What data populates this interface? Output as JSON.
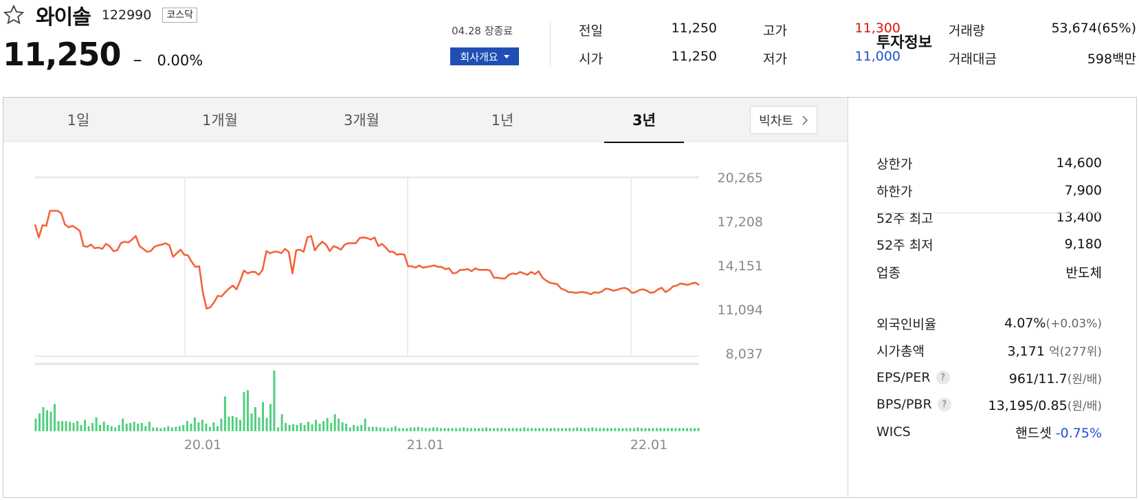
{
  "stock": {
    "name": "와이솔",
    "code": "122990",
    "market": "코스닥",
    "price": "11,250",
    "change_mark": "–",
    "change_pct": "0.00%",
    "date_status": "04.28 장종료",
    "company_button": "회사개요"
  },
  "quote": {
    "prev_close_label": "전일",
    "prev_close": "11,250",
    "open_label": "시가",
    "open": "11,250",
    "high_label": "고가",
    "high": "11,300",
    "low_label": "저가",
    "low": "11,000",
    "volume_label": "거래량",
    "volume": "53,674(65%)",
    "amount_label": "거래대금",
    "amount": "598백만"
  },
  "tabs": [
    "1일",
    "1개월",
    "3개월",
    "1년",
    "3년"
  ],
  "active_tab": "3년",
  "bigchart_label": "빅차트",
  "colors": {
    "price_line": "#f4623a",
    "volume_bar": "#4fd07e",
    "up": "#e3100f",
    "down": "#1f4fd0",
    "accent_btn": "#1f4fb5"
  },
  "chart_data": {
    "type": "line",
    "y_ticks": [
      "20,265",
      "17,208",
      "14,151",
      "11,094",
      "8,037"
    ],
    "ylim": [
      8037,
      20265
    ],
    "x_ticks": [
      "20.01",
      "21.01",
      "22.01"
    ],
    "grid": true,
    "series": [
      {
        "values": [
          17000,
          16100,
          16950,
          16900,
          17950,
          17950,
          17950,
          17800,
          17000,
          16800,
          16900,
          16750,
          16550,
          15500,
          15450,
          15600,
          15350,
          15400,
          15300,
          15650,
          15500,
          15150,
          15200,
          15700,
          15800,
          15750,
          15950,
          16200,
          15500,
          15300,
          15100,
          15150,
          15450,
          15550,
          15600,
          15700,
          15550,
          14750,
          15000,
          15250,
          14900,
          14850,
          14400,
          14050,
          14100,
          12250,
          11150,
          11250,
          11600,
          12050,
          12000,
          12300,
          12550,
          12750,
          12500,
          13100,
          13800,
          13600,
          13700,
          13700,
          13500,
          13850,
          15150,
          15000,
          15100,
          15100,
          15000,
          15300,
          15100,
          13600,
          15200,
          15250,
          15100,
          16100,
          16200,
          15200,
          15550,
          15800,
          15600,
          15150,
          15500,
          15400,
          15250,
          15600,
          15700,
          15700,
          15700,
          16050,
          16100,
          16050,
          15950,
          16100,
          15500,
          15650,
          15400,
          15100,
          15100,
          14900,
          14950,
          14900,
          14100,
          14100,
          14000,
          14150,
          14000,
          14050,
          14100,
          14150,
          14050,
          14050,
          13900,
          13950,
          13600,
          13650,
          13850,
          13850,
          13900,
          13750,
          13950,
          13850,
          13850,
          13850,
          13800,
          13300,
          13300,
          13250,
          13250,
          13500,
          13600,
          13550,
          13700,
          13600,
          13500,
          13700,
          13550,
          13750,
          13300,
          13100,
          12950,
          12900,
          12850,
          12550,
          12450,
          12300,
          12300,
          12250,
          12300,
          12300,
          12250,
          12150,
          12300,
          12250,
          12350,
          12550,
          12500,
          12400,
          12450,
          12550,
          12600,
          12500,
          12250,
          12300,
          12450,
          12500,
          12400,
          12250,
          12300,
          12500,
          12600,
          12300,
          12450,
          12700,
          12750,
          12900,
          12850,
          12800,
          12900,
          12950,
          12800
        ]
      }
    ],
    "volume": {
      "type": "bar",
      "values": [
        0.2,
        0.28,
        0.38,
        0.33,
        0.31,
        0.43,
        0.16,
        0.16,
        0.16,
        0.15,
        0.13,
        0.16,
        0.1,
        0.18,
        0.08,
        0.13,
        0.22,
        0.1,
        0.15,
        0.1,
        0.08,
        0.06,
        0.1,
        0.2,
        0.12,
        0.13,
        0.15,
        0.12,
        0.13,
        0.08,
        0.15,
        0.06,
        0.06,
        0.05,
        0.06,
        0.08,
        0.06,
        0.07,
        0.08,
        0.1,
        0.16,
        0.12,
        0.22,
        0.14,
        0.18,
        0.12,
        0.07,
        0.14,
        0.08,
        0.2,
        0.55,
        0.23,
        0.24,
        0.22,
        0.18,
        0.62,
        0.65,
        0.28,
        0.38,
        0.22,
        0.46,
        0.21,
        0.43,
        0.96,
        0.06,
        0.27,
        0.13,
        0.1,
        0.11,
        0.1,
        0.13,
        0.1,
        0.15,
        0.11,
        0.18,
        0.12,
        0.16,
        0.21,
        0.13,
        0.27,
        0.2,
        0.14,
        0.12,
        0.06,
        0.1,
        0.08,
        0.1,
        0.2,
        0.07,
        0.07,
        0.07,
        0.06,
        0.06,
        0.05,
        0.06,
        0.08,
        0.05,
        0.05,
        0.05,
        0.06,
        0.06,
        0.07,
        0.06,
        0.05,
        0.05,
        0.06,
        0.06,
        0.05,
        0.05,
        0.05,
        0.05,
        0.05,
        0.05,
        0.06,
        0.05,
        0.05,
        0.05,
        0.05,
        0.05,
        0.06,
        0.05,
        0.05,
        0.05,
        0.05,
        0.05,
        0.05,
        0.05,
        0.05,
        0.05,
        0.06,
        0.05,
        0.05,
        0.05,
        0.05,
        0.05,
        0.05,
        0.05,
        0.05,
        0.05,
        0.05,
        0.05,
        0.05,
        0.05,
        0.06,
        0.05,
        0.05,
        0.05,
        0.06,
        0.05,
        0.05,
        0.05,
        0.05,
        0.05,
        0.05,
        0.05,
        0.05,
        0.05,
        0.05,
        0.05,
        0.06,
        0.05,
        0.05,
        0.05,
        0.05,
        0.05,
        0.05,
        0.05,
        0.05,
        0.05,
        0.05,
        0.05,
        0.05,
        0.05,
        0.05,
        0.05,
        0.05
      ]
    }
  },
  "invest": {
    "title": "투자정보",
    "rows": [
      {
        "label": "상한가",
        "value": "14,600",
        "tone": "red"
      },
      {
        "label": "하한가",
        "value": "7,900",
        "tone": "blue"
      },
      {
        "label": "52주 최고",
        "value": "13,400",
        "tone": ""
      },
      {
        "label": "52주 최저",
        "value": "9,180",
        "tone": ""
      },
      {
        "label": "업종",
        "value": "반도체",
        "tone": ""
      }
    ],
    "foreign_label": "외국인비율",
    "foreign_value": "4.07%",
    "foreign_change": "(+0.03%)",
    "mcap_label": "시가총액",
    "mcap_value": "3,171",
    "mcap_unit": "억",
    "mcap_rank": "(277위)",
    "eps_label": "EPS/PER",
    "eps_value": "961/11.7",
    "eps_unit": "(원/배)",
    "bps_label": "BPS/PBR",
    "bps_value": "13,195/0.85",
    "bps_unit": "(원/배)",
    "wics_label": "WICS",
    "wics_value": "핸드셋",
    "wics_change": "-0.75%",
    "help_glyph": "?"
  }
}
